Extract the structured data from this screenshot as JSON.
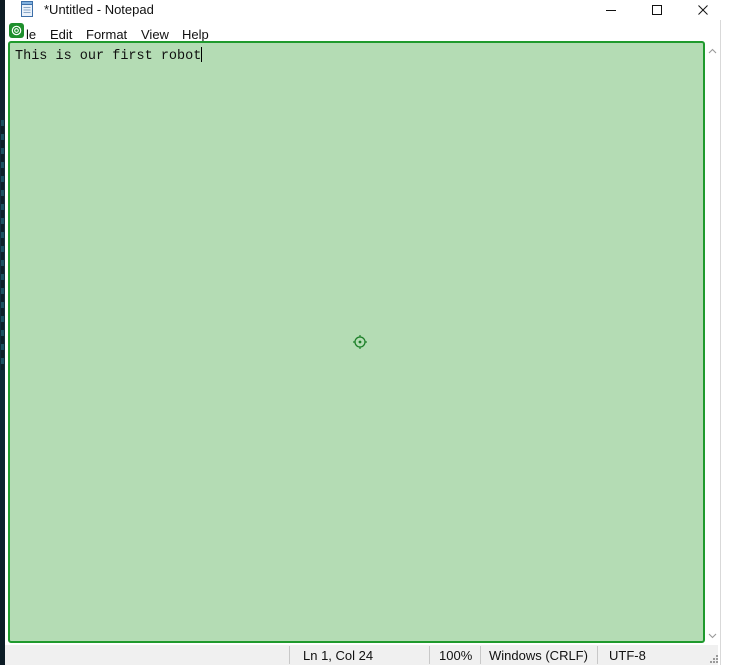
{
  "window": {
    "title": "*Untitled - Notepad",
    "icons": {
      "app": "notepad-icon",
      "minimize": "minimize-icon",
      "maximize": "maximize-icon",
      "close": "close-icon"
    }
  },
  "menu": {
    "file": "le",
    "edit": "Edit",
    "format": "Format",
    "view": "View",
    "help": "Help"
  },
  "editor": {
    "text": "This is our first robot",
    "highlight_color": "#b4dcb4",
    "border_color": "#1f9a2d"
  },
  "statusbar": {
    "position": "Ln 1, Col 24",
    "zoom": "100%",
    "line_endings": "Windows (CRLF)",
    "encoding": "UTF-8"
  }
}
